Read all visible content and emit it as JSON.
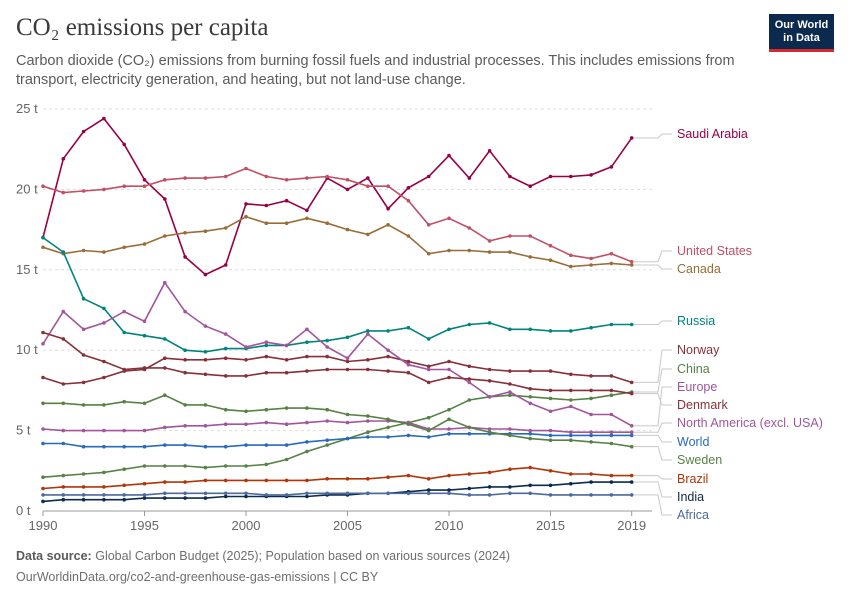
{
  "header": {
    "title": "CO₂ emissions per capita",
    "subtitle": "Carbon dioxide (CO₂) emissions from burning fossil fuels and industrial processes. This includes emissions from transport, electricity generation, and heating, but not land-use change."
  },
  "logo": {
    "line1": "Our World",
    "line2": "in Data"
  },
  "footer": {
    "source_label": "Data source:",
    "source_text": "Global Carbon Budget (2025); Population based on various sources (2024)",
    "url_text": "OurWorldinData.org/co2-and-greenhouse-gas-emissions | CC BY"
  },
  "chart_data": {
    "type": "line",
    "title": "CO₂ emissions per capita",
    "x": [
      1990,
      1991,
      1992,
      1993,
      1994,
      1995,
      1996,
      1997,
      1998,
      1999,
      2000,
      2001,
      2002,
      2003,
      2004,
      2005,
      2006,
      2007,
      2008,
      2009,
      2010,
      2011,
      2012,
      2013,
      2014,
      2015,
      2016,
      2017,
      2018,
      2019,
      2020
    ],
    "xlim": [
      1990,
      2020
    ],
    "xticks": [
      1990,
      1995,
      2000,
      2005,
      2010,
      2015,
      2019
    ],
    "ylim": [
      0,
      25
    ],
    "yticks": [
      0,
      5,
      10,
      15,
      20,
      25
    ],
    "ytick_labels": [
      "0 t",
      "5 t",
      "10 t",
      "15 t",
      "20 t",
      "25 t"
    ],
    "grid": "horizontal dashed",
    "legend": "right, labels at line ends",
    "series": [
      {
        "name": "Saudi Arabia",
        "color": "#970046",
        "values": [
          17.0,
          21.9,
          23.6,
          24.4,
          22.8,
          20.6,
          19.4,
          15.8,
          14.7,
          15.3,
          19.1,
          19.0,
          19.3,
          18.7,
          20.7,
          20.0,
          20.7,
          18.8,
          20.1,
          20.8,
          22.1,
          20.7,
          22.4,
          20.8,
          20.2,
          20.8,
          20.8,
          20.9,
          21.4,
          23.2,
          null
        ]
      },
      {
        "name": "United States",
        "color": "#c15065",
        "values": [
          20.2,
          19.8,
          19.9,
          20.0,
          20.2,
          20.2,
          20.6,
          20.7,
          20.7,
          20.8,
          21.3,
          20.8,
          20.6,
          20.7,
          20.8,
          20.6,
          20.2,
          20.2,
          19.3,
          17.8,
          18.2,
          17.6,
          16.8,
          17.1,
          17.1,
          16.5,
          15.9,
          15.7,
          16.0,
          15.5,
          null
        ]
      },
      {
        "name": "Canada",
        "color": "#996d39",
        "values": [
          16.4,
          16.0,
          16.2,
          16.1,
          16.4,
          16.6,
          17.1,
          17.3,
          17.4,
          17.6,
          18.3,
          17.9,
          17.9,
          18.2,
          17.9,
          17.5,
          17.2,
          17.8,
          17.1,
          16.0,
          16.2,
          16.2,
          16.1,
          16.1,
          15.8,
          15.6,
          15.2,
          15.3,
          15.4,
          15.3,
          null
        ]
      },
      {
        "name": "Russia",
        "color": "#00847e",
        "values": [
          17.0,
          16.1,
          13.2,
          12.6,
          11.1,
          10.9,
          10.7,
          10.0,
          9.9,
          10.1,
          10.1,
          10.3,
          10.3,
          10.5,
          10.6,
          10.8,
          11.2,
          11.2,
          11.4,
          10.7,
          11.3,
          11.6,
          11.7,
          11.3,
          11.3,
          11.2,
          11.2,
          11.4,
          11.6,
          11.6,
          null
        ]
      },
      {
        "name": "Norway",
        "color": "#883039",
        "values": [
          8.3,
          7.9,
          8.0,
          8.3,
          8.7,
          8.8,
          9.5,
          9.4,
          9.4,
          9.5,
          9.4,
          9.6,
          9.4,
          9.6,
          9.6,
          9.3,
          9.4,
          9.6,
          9.3,
          9.0,
          9.3,
          9.0,
          8.8,
          8.7,
          8.7,
          8.7,
          8.5,
          8.4,
          8.4,
          8.0,
          null
        ]
      },
      {
        "name": "China",
        "color": "#578145",
        "values": [
          2.1,
          2.2,
          2.3,
          2.4,
          2.6,
          2.8,
          2.8,
          2.8,
          2.7,
          2.8,
          2.8,
          2.9,
          3.2,
          3.7,
          4.1,
          4.5,
          4.9,
          5.2,
          5.5,
          5.8,
          6.3,
          6.9,
          7.1,
          7.2,
          7.1,
          7.0,
          6.9,
          7.0,
          7.2,
          7.4,
          null
        ]
      },
      {
        "name": "Europe",
        "color": "#a2559c",
        "values": [
          10.4,
          12.4,
          11.3,
          11.7,
          12.4,
          11.8,
          14.2,
          12.4,
          11.5,
          11.0,
          10.2,
          10.5,
          10.3,
          11.3,
          10.2,
          9.5,
          11.0,
          10.0,
          9.1,
          8.8,
          8.8,
          8.0,
          7.1,
          7.4,
          6.7,
          6.2,
          6.5,
          6.0,
          6.0,
          5.3,
          null
        ]
      },
      {
        "name": "Denmark",
        "color": "#883039",
        "values": [
          11.1,
          10.7,
          9.7,
          9.3,
          8.8,
          8.9,
          8.9,
          8.6,
          8.5,
          8.4,
          8.4,
          8.6,
          8.6,
          8.7,
          8.8,
          8.8,
          8.8,
          8.7,
          8.6,
          8.0,
          8.3,
          8.2,
          8.1,
          7.9,
          7.6,
          7.5,
          7.5,
          7.5,
          7.5,
          7.3,
          null
        ]
      },
      {
        "name": "North America (excl. USA)",
        "color": "#a2559c",
        "values": [
          5.1,
          5.0,
          5.0,
          5.0,
          5.0,
          5.0,
          5.2,
          5.3,
          5.3,
          5.4,
          5.4,
          5.5,
          5.4,
          5.5,
          5.6,
          5.5,
          5.6,
          5.6,
          5.5,
          5.1,
          5.1,
          5.2,
          5.1,
          5.1,
          5.0,
          5.0,
          4.9,
          4.9,
          4.9,
          4.9,
          null
        ]
      },
      {
        "name": "World",
        "color": "#286bbb",
        "values": [
          4.2,
          4.2,
          4.0,
          4.0,
          4.0,
          4.0,
          4.1,
          4.1,
          4.0,
          4.0,
          4.1,
          4.1,
          4.1,
          4.3,
          4.4,
          4.5,
          4.6,
          4.6,
          4.7,
          4.6,
          4.8,
          4.8,
          4.8,
          4.8,
          4.8,
          4.7,
          4.7,
          4.7,
          4.7,
          4.7,
          null
        ]
      },
      {
        "name": "Sweden",
        "color": "#578145",
        "values": [
          6.7,
          6.7,
          6.6,
          6.6,
          6.8,
          6.7,
          7.2,
          6.6,
          6.6,
          6.3,
          6.2,
          6.3,
          6.4,
          6.4,
          6.3,
          6.0,
          5.9,
          5.7,
          5.4,
          5.0,
          5.7,
          5.2,
          4.9,
          4.7,
          4.5,
          4.4,
          4.4,
          4.3,
          4.2,
          4.0,
          null
        ]
      },
      {
        "name": "Brazil",
        "color": "#b13507",
        "values": [
          1.4,
          1.5,
          1.5,
          1.5,
          1.6,
          1.7,
          1.8,
          1.8,
          1.9,
          1.9,
          1.9,
          1.9,
          1.9,
          1.9,
          2.0,
          2.0,
          2.0,
          2.1,
          2.2,
          2.0,
          2.2,
          2.3,
          2.4,
          2.6,
          2.7,
          2.5,
          2.3,
          2.3,
          2.2,
          2.2,
          null
        ]
      },
      {
        "name": "India",
        "color": "#0c2a4d",
        "values": [
          0.6,
          0.7,
          0.7,
          0.7,
          0.7,
          0.8,
          0.8,
          0.8,
          0.8,
          0.9,
          0.9,
          0.9,
          0.9,
          0.9,
          1.0,
          1.0,
          1.1,
          1.1,
          1.2,
          1.3,
          1.3,
          1.4,
          1.5,
          1.5,
          1.6,
          1.6,
          1.7,
          1.8,
          1.8,
          1.8,
          null
        ]
      },
      {
        "name": "Africa",
        "color": "#4c6a9c",
        "values": [
          1.0,
          1.0,
          1.0,
          1.0,
          1.0,
          1.0,
          1.1,
          1.1,
          1.1,
          1.1,
          1.1,
          1.0,
          1.0,
          1.1,
          1.1,
          1.1,
          1.1,
          1.1,
          1.1,
          1.1,
          1.1,
          1.0,
          1.0,
          1.1,
          1.1,
          1.0,
          1.0,
          1.0,
          1.0,
          1.0,
          null
        ]
      }
    ]
  }
}
